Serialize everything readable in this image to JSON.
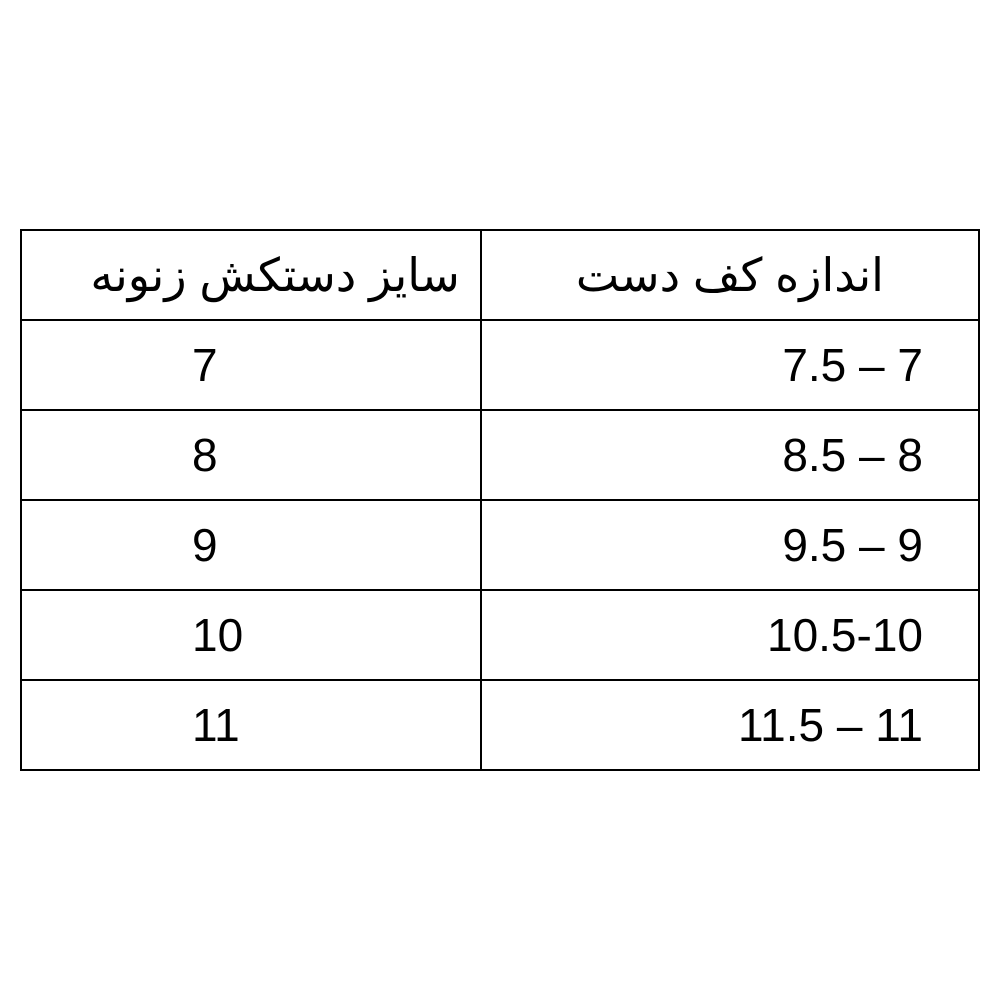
{
  "table": {
    "type": "table",
    "columns": [
      {
        "label": "سایز دستکش زنونه",
        "align": "right"
      },
      {
        "label": "اندازه کف دست",
        "align": "center"
      }
    ],
    "rows": [
      {
        "left": "7",
        "right": "7.5 – 7"
      },
      {
        "left": "8",
        "right": "8.5 – 8"
      },
      {
        "left": "9",
        "right": "9.5 – 9"
      },
      {
        "left": "10",
        "right": "10.5-10"
      },
      {
        "left": "11",
        "right": "11.5 – 11"
      }
    ],
    "border_color": "#000000",
    "background_color": "#ffffff",
    "text_color": "#000000",
    "font_size": 46,
    "border_width": 2
  }
}
